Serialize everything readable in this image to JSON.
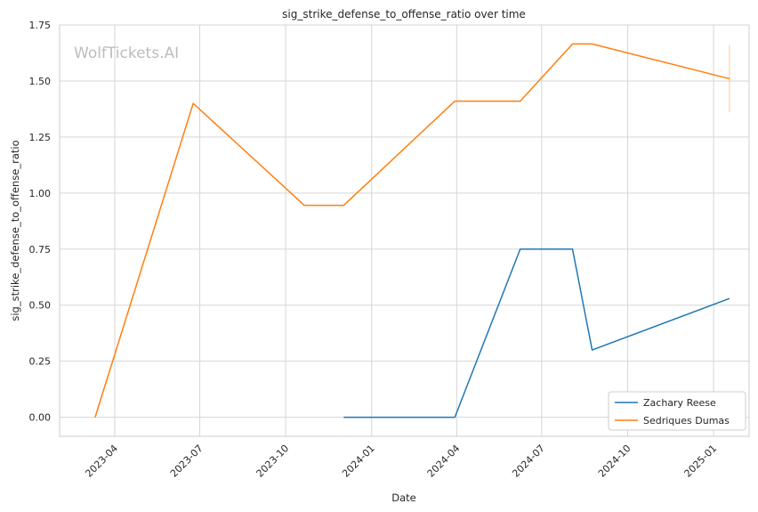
{
  "chart_data": {
    "type": "line",
    "title": "sig_strike_defense_to_offense_ratio over time",
    "xlabel": "Date",
    "ylabel": "sig_strike_defense_to_offense_ratio",
    "watermark": "WolfTickets.AI",
    "xlim": [
      "2023-02-01",
      "2025-02-08"
    ],
    "ylim": [
      -0.085,
      1.75
    ],
    "x_ticks": [
      "2023-04-01",
      "2023-07-01",
      "2023-10-01",
      "2024-01-01",
      "2024-04-01",
      "2024-07-01",
      "2024-10-01",
      "2025-01-01"
    ],
    "x_tick_labels": [
      "2023-04",
      "2023-07",
      "2023-10",
      "2024-01",
      "2024-04",
      "2024-07",
      "2024-10",
      "2025-01"
    ],
    "y_ticks": [
      0.0,
      0.25,
      0.5,
      0.75,
      1.0,
      1.25,
      1.5,
      1.75
    ],
    "y_tick_labels": [
      "0.00",
      "0.25",
      "0.50",
      "0.75",
      "1.00",
      "1.25",
      "1.50",
      "1.75"
    ],
    "grid": true,
    "legend_position": "lower-right",
    "series": [
      {
        "name": "Zachary Reese",
        "color": "#1f77b4",
        "x": [
          "2023-12-02",
          "2024-03-30",
          "2024-06-08",
          "2024-08-03",
          "2024-08-24",
          "2025-01-18"
        ],
        "y": [
          0.0,
          0.0,
          0.75,
          0.75,
          0.3,
          0.53
        ]
      },
      {
        "name": "Sedriques Dumas",
        "color": "#ff7f0e",
        "x": [
          "2023-03-11",
          "2023-06-24",
          "2023-10-21",
          "2023-12-02",
          "2024-03-30",
          "2024-06-08",
          "2024-08-03",
          "2024-08-24",
          "2025-01-18"
        ],
        "y": [
          0.0,
          1.4,
          0.945,
          0.945,
          1.41,
          1.41,
          1.665,
          1.665,
          1.51
        ],
        "error_bar": {
          "x": "2025-01-18",
          "low": 1.36,
          "high": 1.66
        }
      }
    ]
  }
}
